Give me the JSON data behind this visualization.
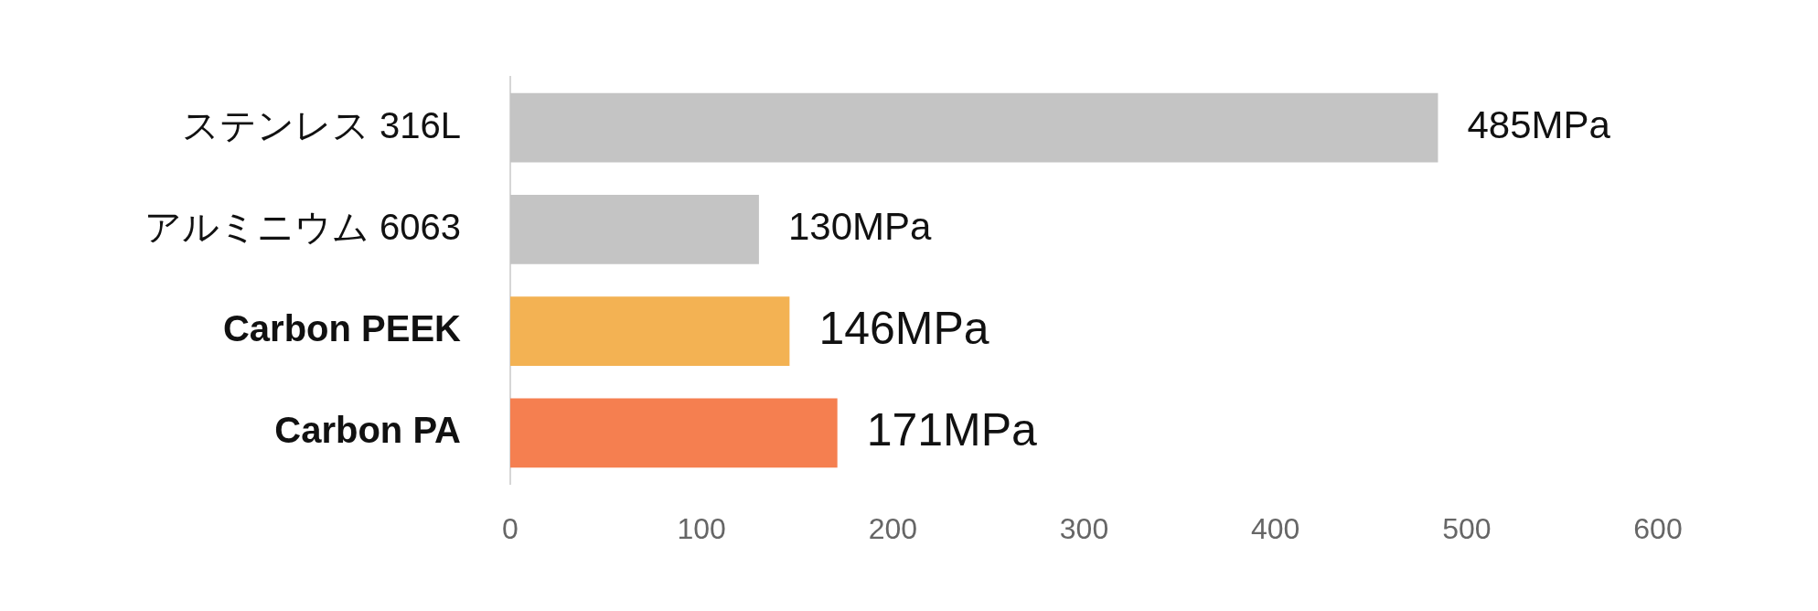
{
  "chart_data": {
    "type": "bar",
    "orientation": "horizontal",
    "categories": [
      "ステンレス 316L",
      "アルミニウム 6063",
      "Carbon PEEK",
      "Carbon PA"
    ],
    "values": [
      485,
      130,
      146,
      171
    ],
    "colors": [
      "#c4c4c4",
      "#c4c4c4",
      "#f3b253",
      "#f57f50"
    ],
    "value_labels": [
      "485MPa",
      "130MPa",
      "146MPa",
      "171MPa"
    ],
    "xlim": [
      0,
      600
    ],
    "xticks": [
      0,
      100,
      200,
      300,
      400,
      500,
      600
    ]
  }
}
